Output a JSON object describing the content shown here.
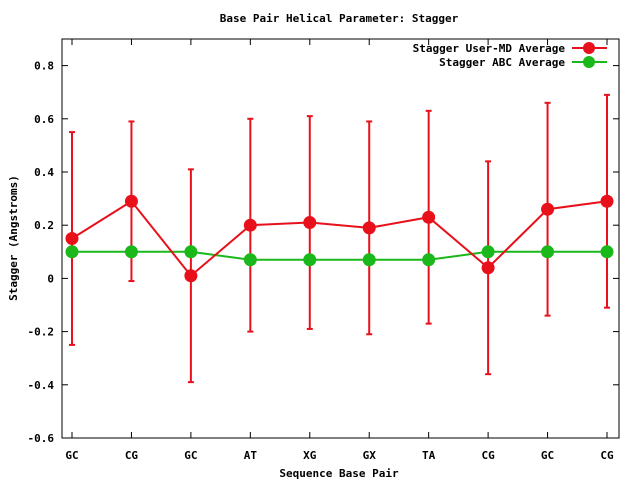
{
  "chart_data": {
    "type": "line",
    "title": "Base Pair Helical Parameter: Stagger",
    "xlabel": "Sequence Base Pair",
    "ylabel": "Stagger (Angstroms)",
    "categories": [
      "GC",
      "CG",
      "GC",
      "AT",
      "XG",
      "GX",
      "TA",
      "CG",
      "GC",
      "CG"
    ],
    "ylim": [
      -0.6,
      0.9
    ],
    "yticks": [
      -0.6,
      -0.4,
      -0.2,
      0,
      0.2,
      0.4,
      0.6,
      0.8
    ],
    "ytick_labels": [
      "-0.6",
      "-0.4",
      "-0.2",
      "0",
      "0.2",
      "0.4",
      "0.6",
      "0.8"
    ],
    "legend_position": "top-right",
    "series": [
      {
        "name": "Stagger User-MD Average",
        "color": "#e8101a",
        "values": [
          0.15,
          0.29,
          0.01,
          0.2,
          0.21,
          0.19,
          0.23,
          0.04,
          0.26,
          0.29
        ],
        "error_low": [
          -0.25,
          -0.01,
          -0.39,
          -0.2,
          -0.19,
          -0.21,
          -0.17,
          -0.36,
          -0.14,
          -0.11
        ],
        "error_high": [
          0.55,
          0.59,
          0.41,
          0.6,
          0.61,
          0.59,
          0.63,
          0.44,
          0.66,
          0.69
        ]
      },
      {
        "name": "Stagger ABC Average",
        "color": "#1ab81a",
        "values": [
          0.1,
          0.1,
          0.1,
          0.07,
          0.07,
          0.07,
          0.07,
          0.1,
          0.1,
          0.1
        ]
      }
    ]
  }
}
